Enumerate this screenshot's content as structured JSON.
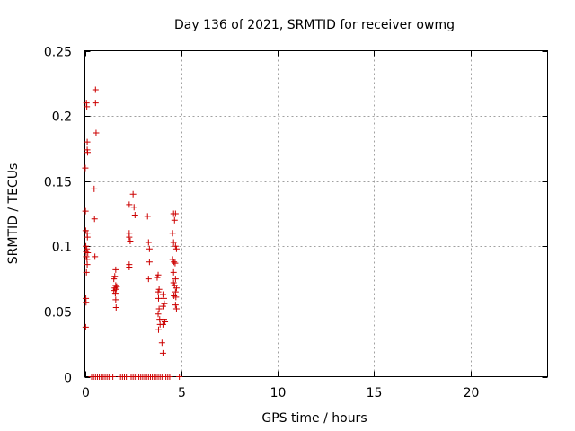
{
  "chart_data": {
    "type": "scatter",
    "title": "Day 136 of 2021, SRMTID for receiver owmg",
    "xlabel": "GPS time / hours",
    "ylabel": "SRMTID / TECUs",
    "xlim": [
      0,
      24
    ],
    "ylim": [
      0,
      0.25
    ],
    "xticks": [
      0,
      5,
      10,
      15,
      20
    ],
    "xtick_labels": [
      "0",
      "5",
      "10",
      "15",
      "20"
    ],
    "yticks": [
      0,
      0.05,
      0.1,
      0.15,
      0.2,
      0.25
    ],
    "ytick_labels": [
      "0",
      "0.05",
      "0.1",
      "0.15",
      "0.2",
      "0.25"
    ],
    "grid": true,
    "marker": "+",
    "color": "#cc0000",
    "series": [
      {
        "name": "SRMTID",
        "points": [
          [
            0.02,
            0.16
          ],
          [
            0.03,
            0.127
          ],
          [
            0.04,
            0.112
          ],
          [
            0.05,
            0.1
          ],
          [
            0.06,
            0.096
          ],
          [
            0.07,
            0.092
          ],
          [
            0.08,
            0.08
          ],
          [
            0.05,
            0.06
          ],
          [
            0.06,
            0.057
          ],
          [
            0.04,
            0.038
          ],
          [
            0.08,
            0.21
          ],
          [
            0.1,
            0.207
          ],
          [
            0.12,
            0.18
          ],
          [
            0.12,
            0.174
          ],
          [
            0.14,
            0.172
          ],
          [
            0.12,
            0.11
          ],
          [
            0.13,
            0.107
          ],
          [
            0.1,
            0.098
          ],
          [
            0.15,
            0.095
          ],
          [
            0.11,
            0.09
          ],
          [
            0.12,
            0.086
          ],
          [
            0.55,
            0.22
          ],
          [
            0.55,
            0.21
          ],
          [
            0.58,
            0.187
          ],
          [
            0.48,
            0.144
          ],
          [
            0.5,
            0.121
          ],
          [
            0.52,
            0.092
          ],
          [
            1.6,
            0.082
          ],
          [
            1.55,
            0.077
          ],
          [
            1.5,
            0.075
          ],
          [
            1.6,
            0.07
          ],
          [
            1.55,
            0.068
          ],
          [
            1.62,
            0.067
          ],
          [
            1.65,
            0.069
          ],
          [
            1.5,
            0.066
          ],
          [
            1.58,
            0.064
          ],
          [
            1.6,
            0.059
          ],
          [
            1.62,
            0.053
          ],
          [
            2.5,
            0.14
          ],
          [
            2.3,
            0.132
          ],
          [
            2.55,
            0.13
          ],
          [
            2.6,
            0.124
          ],
          [
            2.3,
            0.11
          ],
          [
            2.3,
            0.107
          ],
          [
            2.35,
            0.104
          ],
          [
            2.3,
            0.086
          ],
          [
            2.3,
            0.084
          ],
          [
            3.25,
            0.123
          ],
          [
            3.3,
            0.103
          ],
          [
            3.35,
            0.098
          ],
          [
            3.35,
            0.088
          ],
          [
            3.3,
            0.075
          ],
          [
            3.8,
            0.078
          ],
          [
            3.75,
            0.076
          ],
          [
            3.85,
            0.067
          ],
          [
            3.8,
            0.065
          ],
          [
            3.82,
            0.06
          ],
          [
            3.85,
            0.052
          ],
          [
            3.8,
            0.048
          ],
          [
            3.88,
            0.044
          ],
          [
            3.9,
            0.04
          ],
          [
            3.82,
            0.036
          ],
          [
            4.05,
            0.063
          ],
          [
            4.1,
            0.06
          ],
          [
            4.12,
            0.056
          ],
          [
            4.05,
            0.054
          ],
          [
            4.1,
            0.044
          ],
          [
            4.15,
            0.042
          ],
          [
            4.05,
            0.04
          ],
          [
            4.0,
            0.026
          ],
          [
            4.05,
            0.018
          ],
          [
            4.6,
            0.125
          ],
          [
            4.7,
            0.125
          ],
          [
            4.65,
            0.12
          ],
          [
            4.55,
            0.11
          ],
          [
            4.6,
            0.103
          ],
          [
            4.7,
            0.1
          ],
          [
            4.75,
            0.098
          ],
          [
            4.55,
            0.09
          ],
          [
            4.62,
            0.088
          ],
          [
            4.68,
            0.087
          ],
          [
            4.6,
            0.08
          ],
          [
            4.7,
            0.075
          ],
          [
            4.6,
            0.072
          ],
          [
            4.65,
            0.07
          ],
          [
            4.75,
            0.068
          ],
          [
            4.7,
            0.065
          ],
          [
            4.62,
            0.062
          ],
          [
            4.72,
            0.061
          ],
          [
            4.7,
            0.055
          ],
          [
            4.75,
            0.052
          ],
          [
            0.35,
            0
          ],
          [
            0.45,
            0
          ],
          [
            0.55,
            0
          ],
          [
            0.65,
            0
          ],
          [
            0.75,
            0
          ],
          [
            0.85,
            0
          ],
          [
            0.95,
            0
          ],
          [
            1.05,
            0
          ],
          [
            1.15,
            0
          ],
          [
            1.25,
            0
          ],
          [
            1.35,
            0
          ],
          [
            1.45,
            0
          ],
          [
            1.85,
            0
          ],
          [
            1.95,
            0
          ],
          [
            2.05,
            0
          ],
          [
            2.15,
            0
          ],
          [
            2.4,
            0
          ],
          [
            2.5,
            0
          ],
          [
            2.6,
            0
          ],
          [
            2.7,
            0
          ],
          [
            2.8,
            0
          ],
          [
            2.9,
            0
          ],
          [
            3.0,
            0
          ],
          [
            3.1,
            0
          ],
          [
            3.2,
            0
          ],
          [
            3.3,
            0
          ],
          [
            3.4,
            0
          ],
          [
            3.5,
            0
          ],
          [
            3.6,
            0
          ],
          [
            3.7,
            0
          ],
          [
            3.8,
            0
          ],
          [
            3.9,
            0
          ],
          [
            4.0,
            0
          ],
          [
            4.1,
            0
          ],
          [
            4.2,
            0
          ],
          [
            4.3,
            0
          ],
          [
            4.4,
            0
          ],
          [
            4.9,
            0
          ]
        ]
      }
    ]
  }
}
